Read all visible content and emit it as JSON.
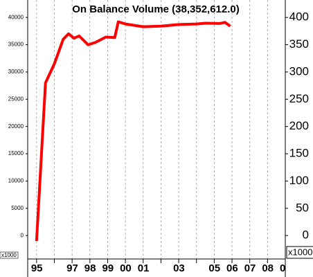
{
  "chart_data": {
    "type": "line",
    "title": "On Balance Volume (38,352,612.0)",
    "y_unit_label": "x1000",
    "y2_unit_label": "x1000",
    "x": [
      1995.0,
      1995.5,
      1996.0,
      1996.5,
      1996.8,
      1997.1,
      1997.4,
      1997.9,
      1998.3,
      1998.9,
      1999.4,
      1999.6,
      2000.0,
      2001.0,
      2002.0,
      2003.0,
      2004.0,
      2004.5,
      2005.3,
      2005.6,
      2005.9
    ],
    "series": [
      {
        "name": "On Balance Volume",
        "color": "#ff0000",
        "axis": "y",
        "values": [
          -1000,
          28000,
          31500,
          36000,
          37000,
          36200,
          36600,
          35000,
          35400,
          36400,
          36300,
          39200,
          38800,
          38300,
          38400,
          38700,
          38800,
          38950,
          38900,
          39100,
          38400
        ]
      }
    ],
    "xlim": [
      1994.5,
      2009.0
    ],
    "xticks": [
      {
        "value": 1995,
        "label": "95"
      },
      {
        "value": 1996,
        "label": null
      },
      {
        "value": 1997,
        "label": "97"
      },
      {
        "value": 1998,
        "label": "98"
      },
      {
        "value": 1999,
        "label": "99"
      },
      {
        "value": 2000,
        "label": "00"
      },
      {
        "value": 2001,
        "label": "01"
      },
      {
        "value": 2002,
        "label": null
      },
      {
        "value": 2003,
        "label": "03"
      },
      {
        "value": 2004,
        "label": null
      },
      {
        "value": 2005,
        "label": "05"
      },
      {
        "value": 2006,
        "label": "06"
      },
      {
        "value": 2007,
        "label": "07"
      },
      {
        "value": 2008,
        "label": "08"
      },
      {
        "value": 2009,
        "label": "0"
      }
    ],
    "ylim": [
      -4300,
      43200
    ],
    "yticks": [
      0,
      5000,
      10000,
      15000,
      20000,
      25000,
      30000,
      35000,
      40000
    ],
    "y2lim": [
      -43,
      432
    ],
    "y2ticks": [
      0,
      50,
      100,
      150,
      200,
      250,
      300,
      350,
      400
    ],
    "grid": true
  }
}
